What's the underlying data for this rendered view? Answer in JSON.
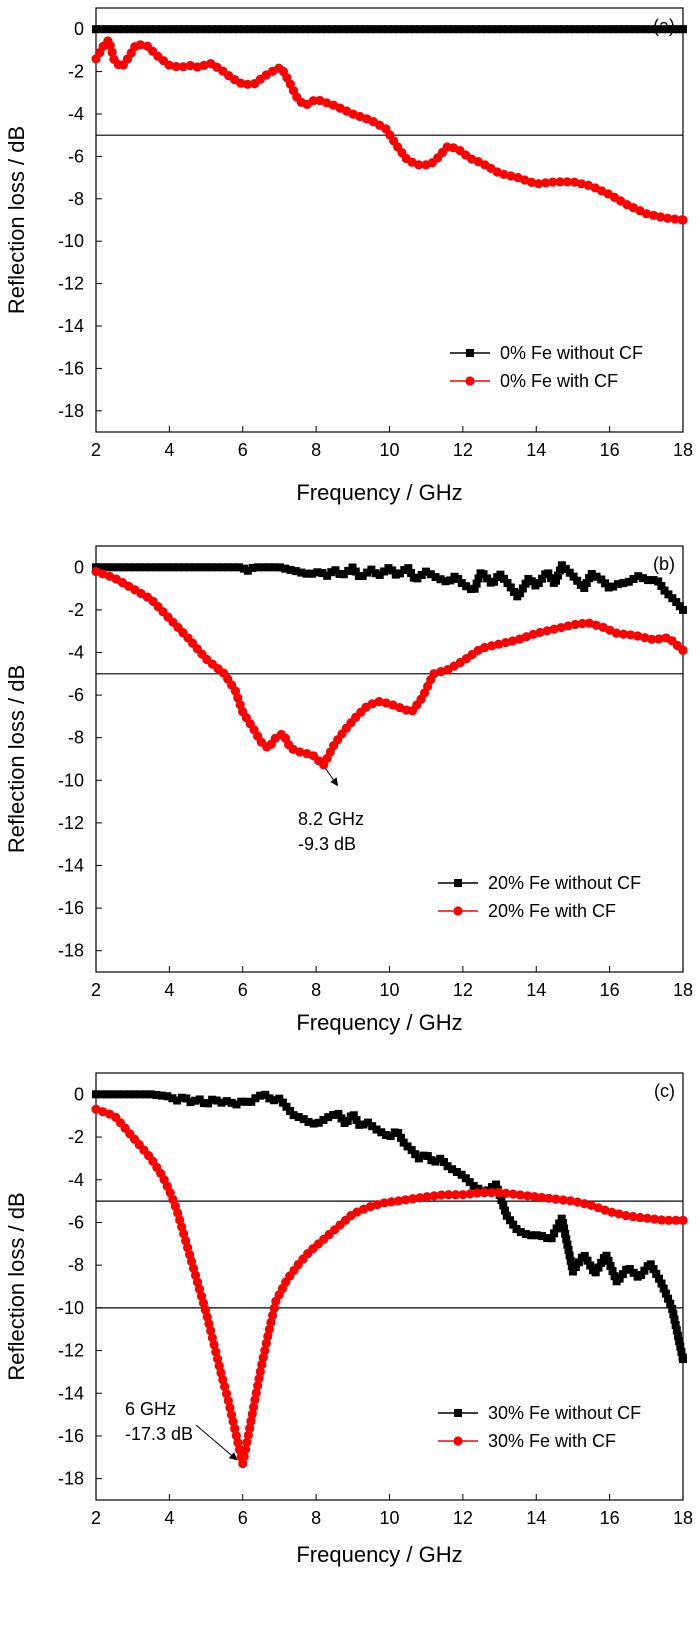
{
  "chart_data": [
    {
      "type": "scatter",
      "panel_label": "(a)",
      "xlabel": "Frequency / GHz",
      "ylabel": "Reflection loss / dB",
      "xlim": [
        2,
        18
      ],
      "ylim": [
        -19,
        1
      ],
      "xticks": [
        2,
        4,
        6,
        8,
        10,
        12,
        14,
        16,
        18
      ],
      "yticks": [
        0,
        -2,
        -4,
        -6,
        -8,
        -10,
        -12,
        -14,
        -16,
        -18
      ],
      "reference_lines": [
        -5
      ],
      "legend_position": "bottom-right",
      "annotations": [],
      "series": [
        {
          "name": "0% Fe without CF",
          "marker": "square",
          "color": "#000000",
          "x": [
            2,
            4,
            6,
            8,
            10,
            12,
            14,
            16,
            18
          ],
          "y": [
            0,
            0,
            0,
            0,
            0,
            0,
            0,
            0,
            0
          ]
        },
        {
          "name": "0% Fe with CF",
          "marker": "circle",
          "color": "#ff0000",
          "x": [
            2.0,
            2.2,
            2.35,
            2.5,
            2.7,
            2.9,
            3.1,
            3.4,
            3.7,
            4.0,
            4.3,
            4.6,
            4.8,
            5.1,
            5.4,
            5.7,
            6.0,
            6.3,
            6.6,
            6.9,
            7.05,
            7.3,
            7.5,
            7.7,
            8.0,
            8.5,
            9.0,
            9.5,
            9.9,
            10.2,
            10.5,
            10.8,
            11.1,
            11.3,
            11.6,
            11.9,
            12.2,
            12.5,
            13.0,
            13.5,
            14.0,
            14.5,
            15.0,
            15.5,
            16.0,
            16.5,
            17.0,
            17.5,
            18.0
          ],
          "y": [
            -1.4,
            -0.8,
            -0.5,
            -1.5,
            -1.8,
            -1.3,
            -0.7,
            -0.8,
            -1.3,
            -1.7,
            -1.8,
            -1.7,
            -1.8,
            -1.6,
            -1.9,
            -2.3,
            -2.6,
            -2.6,
            -2.2,
            -1.9,
            -1.8,
            -2.6,
            -3.3,
            -3.6,
            -3.3,
            -3.6,
            -4.0,
            -4.3,
            -4.7,
            -5.5,
            -6.2,
            -6.4,
            -6.4,
            -6.1,
            -5.5,
            -5.7,
            -6.1,
            -6.3,
            -6.8,
            -7.0,
            -7.3,
            -7.2,
            -7.2,
            -7.4,
            -7.8,
            -8.3,
            -8.7,
            -8.9,
            -9.0
          ]
        }
      ]
    },
    {
      "type": "scatter",
      "panel_label": "(b)",
      "xlabel": "Frequency / GHz",
      "ylabel": "Reflection loss / dB",
      "xlim": [
        2,
        18
      ],
      "ylim": [
        -19,
        1
      ],
      "xticks": [
        2,
        4,
        6,
        8,
        10,
        12,
        14,
        16,
        18
      ],
      "yticks": [
        0,
        -2,
        -4,
        -6,
        -8,
        -10,
        -12,
        -14,
        -16,
        -18
      ],
      "reference_lines": [
        -5
      ],
      "legend_position": "bottom-right",
      "annotations": [
        {
          "text_lines": [
            "8.2 GHz",
            "-9.3 dB"
          ],
          "x": 8.2,
          "y": -9.3
        }
      ],
      "series": [
        {
          "name": "20% Fe without CF",
          "marker": "square",
          "color": "#000000",
          "x": [
            2.0,
            3.0,
            4.0,
            5.0,
            6.0,
            6.1,
            6.3,
            7.0,
            7.5,
            7.7,
            7.9,
            8.1,
            8.3,
            8.5,
            8.7,
            9.0,
            9.2,
            9.5,
            9.7,
            10.0,
            10.2,
            10.5,
            10.7,
            11.0,
            11.3,
            11.6,
            11.8,
            12.0,
            12.3,
            12.5,
            12.8,
            13.0,
            13.2,
            13.5,
            13.8,
            14.0,
            14.3,
            14.5,
            14.7,
            15.0,
            15.3,
            15.5,
            15.8,
            16.0,
            16.2,
            16.5,
            16.8,
            17.0,
            17.3,
            17.5,
            17.8,
            18.0
          ],
          "y": [
            0,
            0,
            0,
            0,
            0,
            -0.2,
            0,
            0,
            -0.2,
            -0.3,
            -0.3,
            -0.2,
            -0.4,
            -0.1,
            -0.4,
            0.0,
            -0.5,
            -0.1,
            -0.4,
            0.0,
            -0.4,
            0.0,
            -0.6,
            -0.2,
            -0.5,
            -0.7,
            -0.4,
            -0.8,
            -1.1,
            -0.2,
            -0.8,
            -0.3,
            -0.7,
            -1.4,
            -0.5,
            -0.9,
            -0.2,
            -0.8,
            0.1,
            -0.4,
            -1.0,
            -0.3,
            -0.6,
            -1.0,
            -0.8,
            -0.7,
            -0.4,
            -0.6,
            -0.6,
            -1.1,
            -1.6,
            -2.0
          ]
        },
        {
          "name": "20% Fe with CF",
          "marker": "circle",
          "color": "#ff0000",
          "x": [
            2.0,
            2.5,
            3.0,
            3.5,
            4.0,
            4.5,
            5.0,
            5.5,
            5.8,
            6.0,
            6.3,
            6.5,
            6.7,
            6.9,
            7.1,
            7.3,
            7.6,
            7.9,
            8.2,
            8.5,
            8.8,
            9.1,
            9.4,
            9.7,
            10.0,
            10.3,
            10.6,
            10.9,
            11.2,
            11.6,
            12.0,
            12.5,
            13.0,
            13.5,
            14.0,
            14.5,
            15.0,
            15.4,
            15.8,
            16.2,
            16.7,
            17.2,
            17.6,
            18.0
          ],
          "y": [
            -0.2,
            -0.5,
            -1.0,
            -1.5,
            -2.4,
            -3.3,
            -4.3,
            -5.0,
            -5.8,
            -6.8,
            -7.6,
            -8.2,
            -8.5,
            -8.0,
            -7.8,
            -8.5,
            -8.7,
            -8.8,
            -9.3,
            -8.3,
            -7.6,
            -7.0,
            -6.5,
            -6.3,
            -6.4,
            -6.6,
            -6.8,
            -6.1,
            -5.0,
            -4.8,
            -4.4,
            -3.8,
            -3.6,
            -3.4,
            -3.1,
            -2.9,
            -2.7,
            -2.6,
            -2.8,
            -3.1,
            -3.2,
            -3.4,
            -3.3,
            -3.9
          ]
        }
      ]
    },
    {
      "type": "scatter",
      "panel_label": "(c)",
      "xlabel": "Frequency / GHz",
      "ylabel": "Reflection loss / dB",
      "xlim": [
        2,
        18
      ],
      "ylim": [
        -19,
        1
      ],
      "xticks": [
        2,
        4,
        6,
        8,
        10,
        12,
        14,
        16,
        18
      ],
      "yticks": [
        0,
        -2,
        -4,
        -6,
        -8,
        -10,
        -12,
        -14,
        -16,
        -18
      ],
      "reference_lines": [
        -5,
        -10
      ],
      "legend_position": "bottom-right",
      "annotations": [
        {
          "text_lines": [
            "6 GHz",
            "-17.3 dB"
          ],
          "x": 6.0,
          "y": -17.3
        }
      ],
      "series": [
        {
          "name": "30% Fe without CF",
          "marker": "square",
          "color": "#000000",
          "x": [
            2.0,
            2.5,
            3.0,
            3.5,
            4.0,
            4.2,
            4.4,
            4.6,
            4.8,
            5.0,
            5.2,
            5.4,
            5.6,
            5.8,
            6.0,
            6.2,
            6.4,
            6.6,
            6.8,
            7.0,
            7.2,
            7.4,
            7.6,
            7.8,
            8.0,
            8.2,
            8.4,
            8.6,
            8.8,
            9.0,
            9.2,
            9.4,
            9.6,
            9.8,
            10.0,
            10.2,
            10.4,
            10.6,
            10.8,
            11.0,
            11.2,
            11.4,
            11.6,
            11.8,
            12.0,
            12.3,
            12.6,
            12.9,
            13.2,
            13.5,
            13.8,
            14.1,
            14.4,
            14.7,
            15.0,
            15.3,
            15.6,
            15.9,
            16.2,
            16.5,
            16.8,
            17.1,
            17.4,
            17.7,
            18.0
          ],
          "y": [
            0,
            0,
            0,
            0,
            -0.1,
            -0.3,
            -0.1,
            -0.4,
            -0.2,
            -0.5,
            -0.2,
            -0.4,
            -0.3,
            -0.5,
            -0.3,
            -0.4,
            -0.1,
            0.0,
            -0.3,
            -0.2,
            -0.6,
            -1.0,
            -1.1,
            -1.3,
            -1.4,
            -1.2,
            -1.0,
            -0.9,
            -1.4,
            -0.9,
            -1.5,
            -1.3,
            -1.6,
            -1.8,
            -2.0,
            -1.7,
            -2.3,
            -2.6,
            -3.0,
            -2.8,
            -3.2,
            -3.0,
            -3.4,
            -3.6,
            -3.8,
            -4.3,
            -4.6,
            -4.2,
            -5.7,
            -6.4,
            -6.6,
            -6.6,
            -6.8,
            -5.8,
            -8.3,
            -7.5,
            -8.4,
            -7.5,
            -8.8,
            -8.1,
            -8.6,
            -7.9,
            -8.8,
            -10.0,
            -12.4
          ]
        },
        {
          "name": "30% Fe with CF",
          "marker": "circle",
          "color": "#ff0000",
          "x": [
            2.0,
            2.5,
            3.0,
            3.5,
            3.8,
            4.0,
            4.2,
            4.4,
            4.6,
            4.8,
            5.0,
            5.2,
            5.4,
            5.6,
            5.8,
            6.0,
            6.15,
            6.3,
            6.5,
            6.7,
            6.9,
            7.2,
            7.5,
            7.8,
            8.2,
            8.6,
            9.0,
            9.4,
            9.8,
            10.2,
            10.6,
            11.0,
            11.5,
            12.0,
            12.5,
            13.0,
            13.5,
            14.0,
            14.5,
            15.0,
            15.5,
            16.0,
            16.5,
            17.0,
            17.5,
            18.0
          ],
          "y": [
            -0.7,
            -1.0,
            -2.0,
            -3.0,
            -3.8,
            -4.5,
            -5.4,
            -6.6,
            -7.8,
            -9.0,
            -10.2,
            -11.6,
            -13.0,
            -14.3,
            -15.8,
            -17.3,
            -16.0,
            -14.6,
            -12.8,
            -11.2,
            -9.7,
            -8.7,
            -8.0,
            -7.4,
            -6.8,
            -6.2,
            -5.6,
            -5.3,
            -5.1,
            -5.0,
            -4.9,
            -4.8,
            -4.7,
            -4.7,
            -4.6,
            -4.6,
            -4.7,
            -4.8,
            -4.9,
            -5.0,
            -5.2,
            -5.5,
            -5.7,
            -5.8,
            -5.9,
            -5.9
          ]
        }
      ]
    }
  ]
}
